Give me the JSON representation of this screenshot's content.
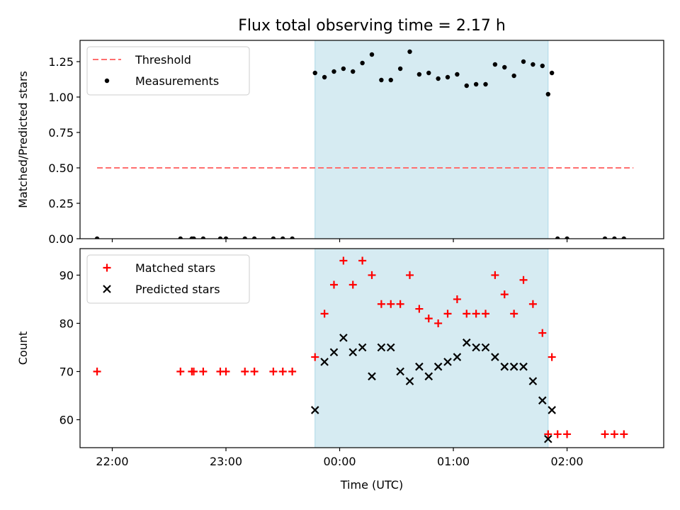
{
  "figure": {
    "title": "Flux total observing time = 2.17 h"
  },
  "chart_data": [
    {
      "type": "scatter",
      "panel": "top",
      "title": "Flux total observing time = 2.17 h",
      "xlabel": "",
      "ylabel": "Matched/Predicted stars",
      "x_unit": "time (UTC, hh:mm)",
      "xlim": [
        "21:43",
        "02:51"
      ],
      "ylim": [
        0,
        1.4
      ],
      "yticks": [
        0.0,
        0.25,
        0.5,
        0.75,
        1.0,
        1.25
      ],
      "ytick_labels": [
        "0.00",
        "0.25",
        "0.50",
        "0.75",
        "1.00",
        "1.25"
      ],
      "xticks": [
        "22:00",
        "23:00",
        "00:00",
        "01:00",
        "02:00"
      ],
      "xtick_labels": [],
      "legend": {
        "placement": "top-left",
        "entries": [
          "Threshold",
          "Measurements"
        ]
      },
      "highlight_span": {
        "x": [
          "23:47",
          "01:50"
        ],
        "color": "#add8e6"
      },
      "grid": false,
      "series": [
        {
          "name": "Threshold",
          "kind": "line",
          "style": "dashed",
          "color": "#ff6f6f",
          "points": [
            [
              "21:52",
              0.5
            ],
            [
              "02:35",
              0.5
            ]
          ]
        },
        {
          "name": "Measurements",
          "kind": "scatter",
          "marker": "dot",
          "color": "#000000",
          "points": [
            [
              "21:52",
              0.0
            ],
            [
              "22:36",
              0.0
            ],
            [
              "22:42",
              0.0
            ],
            [
              "22:43",
              0.0
            ],
            [
              "22:48",
              0.0
            ],
            [
              "22:57",
              0.0
            ],
            [
              "23:00",
              0.0
            ],
            [
              "23:10",
              0.0
            ],
            [
              "23:15",
              0.0
            ],
            [
              "23:25",
              0.0
            ],
            [
              "23:30",
              0.0
            ],
            [
              "23:35",
              0.0
            ],
            [
              "23:47",
              1.17
            ],
            [
              "23:52",
              1.14
            ],
            [
              "23:57",
              1.18
            ],
            [
              "00:02",
              1.2
            ],
            [
              "00:07",
              1.18
            ],
            [
              "00:12",
              1.24
            ],
            [
              "00:17",
              1.3
            ],
            [
              "00:22",
              1.12
            ],
            [
              "00:27",
              1.12
            ],
            [
              "00:32",
              1.2
            ],
            [
              "00:37",
              1.32
            ],
            [
              "00:42",
              1.16
            ],
            [
              "00:47",
              1.17
            ],
            [
              "00:52",
              1.13
            ],
            [
              "00:57",
              1.14
            ],
            [
              "01:02",
              1.16
            ],
            [
              "01:07",
              1.08
            ],
            [
              "01:12",
              1.09
            ],
            [
              "01:17",
              1.09
            ],
            [
              "01:22",
              1.23
            ],
            [
              "01:27",
              1.21
            ],
            [
              "01:32",
              1.15
            ],
            [
              "01:37",
              1.25
            ],
            [
              "01:42",
              1.23
            ],
            [
              "01:47",
              1.22
            ],
            [
              "01:52",
              1.17
            ],
            [
              "01:50",
              1.02
            ],
            [
              "01:55",
              0.0
            ],
            [
              "02:00",
              0.0
            ],
            [
              "02:20",
              0.0
            ],
            [
              "02:25",
              0.0
            ],
            [
              "02:30",
              0.0
            ]
          ]
        }
      ]
    },
    {
      "type": "scatter",
      "panel": "bottom",
      "title": "",
      "xlabel": "Time (UTC)",
      "ylabel": "Count",
      "xlim": [
        "21:43",
        "02:51"
      ],
      "ylim": [
        54.2,
        95.5
      ],
      "yticks": [
        60,
        70,
        80,
        90
      ],
      "ytick_labels": [
        "60",
        "70",
        "80",
        "90"
      ],
      "xticks": [
        "22:00",
        "23:00",
        "00:00",
        "01:00",
        "02:00"
      ],
      "xtick_labels": [
        "22:00",
        "23:00",
        "00:00",
        "01:00",
        "02:00"
      ],
      "legend": {
        "placement": "top-left",
        "entries": [
          "Matched stars",
          "Predicted stars"
        ]
      },
      "highlight_span": {
        "x": [
          "23:47",
          "01:50"
        ],
        "color": "#add8e6"
      },
      "grid": false,
      "series": [
        {
          "name": "Matched stars",
          "kind": "scatter",
          "marker": "plus",
          "color": "#ff0000",
          "points": [
            [
              "21:52",
              70
            ],
            [
              "22:36",
              70
            ],
            [
              "22:42",
              70
            ],
            [
              "22:43",
              70
            ],
            [
              "22:48",
              70
            ],
            [
              "22:57",
              70
            ],
            [
              "23:00",
              70
            ],
            [
              "23:10",
              70
            ],
            [
              "23:15",
              70
            ],
            [
              "23:25",
              70
            ],
            [
              "23:30",
              70
            ],
            [
              "23:35",
              70
            ],
            [
              "23:47",
              73
            ],
            [
              "23:52",
              82
            ],
            [
              "23:57",
              88
            ],
            [
              "00:02",
              93
            ],
            [
              "00:07",
              88
            ],
            [
              "00:12",
              93
            ],
            [
              "00:17",
              90
            ],
            [
              "00:22",
              84
            ],
            [
              "00:27",
              84
            ],
            [
              "00:32",
              84
            ],
            [
              "00:37",
              90
            ],
            [
              "00:42",
              83
            ],
            [
              "00:47",
              81
            ],
            [
              "00:52",
              80
            ],
            [
              "00:57",
              82
            ],
            [
              "01:02",
              85
            ],
            [
              "01:07",
              82
            ],
            [
              "01:12",
              82
            ],
            [
              "01:17",
              82
            ],
            [
              "01:22",
              90
            ],
            [
              "01:27",
              86
            ],
            [
              "01:32",
              82
            ],
            [
              "01:37",
              89
            ],
            [
              "01:42",
              84
            ],
            [
              "01:47",
              78
            ],
            [
              "01:52",
              73
            ],
            [
              "01:50",
              57
            ],
            [
              "01:55",
              57
            ],
            [
              "02:00",
              57
            ],
            [
              "02:20",
              57
            ],
            [
              "02:25",
              57
            ],
            [
              "02:30",
              57
            ]
          ]
        },
        {
          "name": "Predicted stars",
          "kind": "scatter",
          "marker": "x",
          "color": "#000000",
          "points": [
            [
              "23:47",
              62
            ],
            [
              "23:52",
              72
            ],
            [
              "23:57",
              74
            ],
            [
              "00:02",
              77
            ],
            [
              "00:07",
              74
            ],
            [
              "00:12",
              75
            ],
            [
              "00:17",
              69
            ],
            [
              "00:22",
              75
            ],
            [
              "00:27",
              75
            ],
            [
              "00:32",
              70
            ],
            [
              "00:37",
              68
            ],
            [
              "00:42",
              71
            ],
            [
              "00:47",
              69
            ],
            [
              "00:52",
              71
            ],
            [
              "00:57",
              72
            ],
            [
              "01:02",
              73
            ],
            [
              "01:07",
              76
            ],
            [
              "01:12",
              75
            ],
            [
              "01:17",
              75
            ],
            [
              "01:22",
              73
            ],
            [
              "01:27",
              71
            ],
            [
              "01:32",
              71
            ],
            [
              "01:37",
              71
            ],
            [
              "01:42",
              68
            ],
            [
              "01:47",
              64
            ],
            [
              "01:52",
              62
            ],
            [
              "01:50",
              56
            ]
          ]
        }
      ]
    }
  ]
}
